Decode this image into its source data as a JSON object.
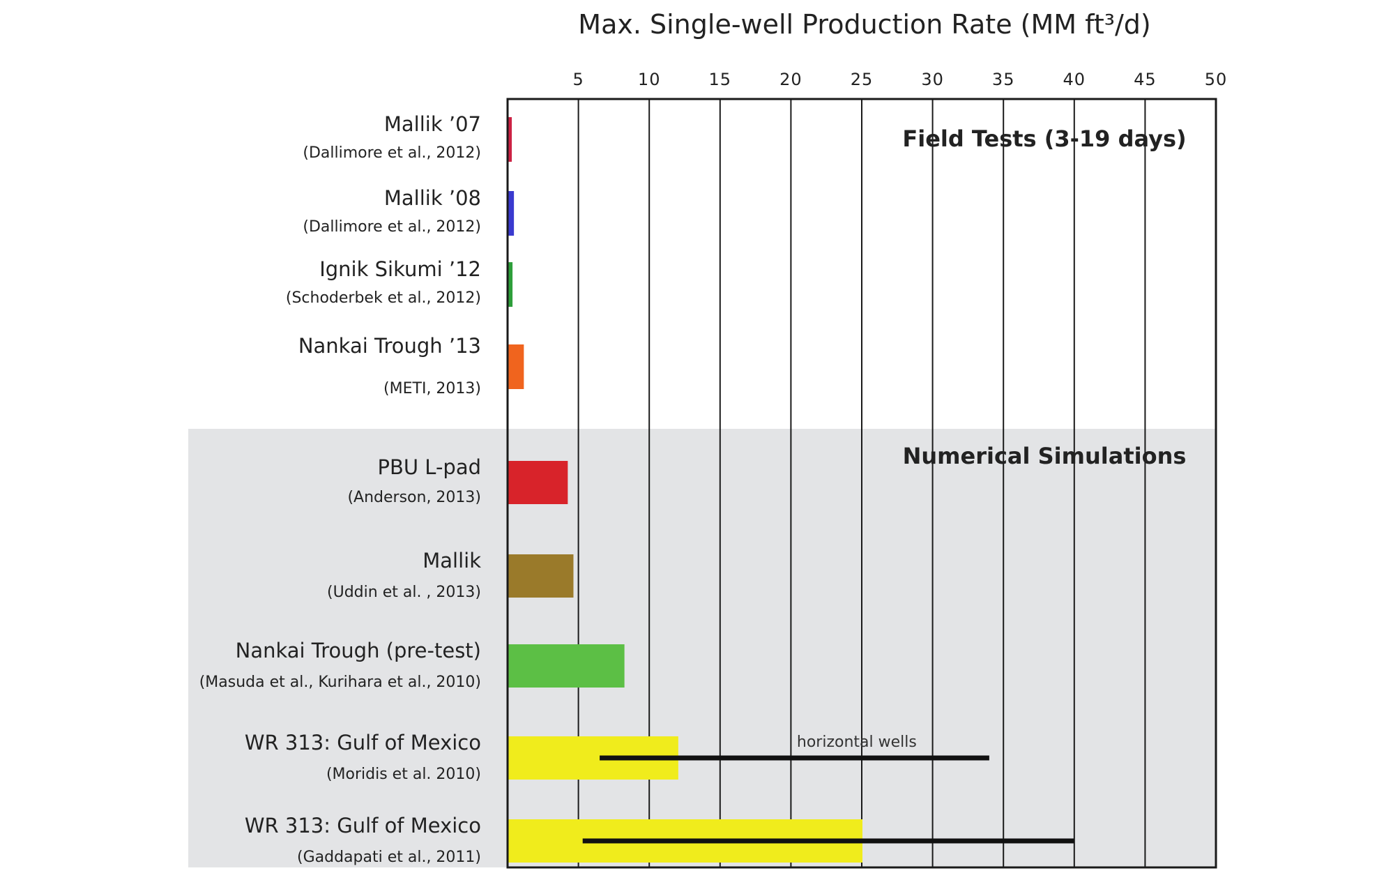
{
  "chart_data": {
    "type": "bar",
    "orientation": "horizontal",
    "title": "Max. Single-well Production Rate (MM  ft³/d)",
    "xlim": [
      0,
      50
    ],
    "xticks": [
      5,
      10,
      15,
      20,
      25,
      30,
      35,
      40,
      45,
      50
    ],
    "grid": true,
    "sections": [
      {
        "label": "Field Tests (3-19 days)",
        "start_index": 0,
        "end_index": 3,
        "shaded": false
      },
      {
        "label": "Numerical Simulations",
        "start_index": 4,
        "end_index": 8,
        "shaded": true,
        "shade_color": "#e3e4e6"
      }
    ],
    "categories": [
      {
        "label": "Mallik ’07",
        "ref": "(Dallimore et al., 2012)",
        "value": 0.25,
        "color": "#cc2244"
      },
      {
        "label": "Mallik ’08",
        "ref": "(Dallimore et al., 2012)",
        "value": 0.4,
        "color": "#3a3acf"
      },
      {
        "label": "Ignik Sikumi ’12",
        "ref": "(Schoderbek et al., 2012)",
        "value": 0.3,
        "color": "#2e9e3a"
      },
      {
        "label": "Nankai Trough ’13",
        "ref": "(METI, 2013)",
        "value": 1.1,
        "color": "#f0641e"
      },
      {
        "label": "PBU L-pad",
        "ref": "(Anderson, 2013)",
        "value": 4.2,
        "color": "#d8232a"
      },
      {
        "label": "Mallik",
        "ref": "(Uddin et al. , 2013)",
        "value": 4.6,
        "color": "#9a7a2a"
      },
      {
        "label": "Nankai Trough (pre-test)",
        "ref": "(Masuda et al., Kurihara et al., 2010)",
        "value": 8.2,
        "color": "#5cbf45"
      },
      {
        "label": "WR 313:  Gulf of Mexico",
        "ref": "(Moridis et al. 2010)",
        "value": 12.0,
        "color": "#f0ec1c"
      },
      {
        "label": "WR 313:  Gulf of Mexico",
        "ref": "(Gaddapati et al., 2011)",
        "value": 25.0,
        "color": "#f0ec1c"
      }
    ],
    "ranges": [
      {
        "category_index": 7,
        "from": 6.5,
        "to": 34.0,
        "color": "#111111",
        "label": "horizontal wells"
      },
      {
        "category_index": 8,
        "from": 5.3,
        "to": 40.0,
        "color": "#111111",
        "label": ""
      }
    ]
  }
}
